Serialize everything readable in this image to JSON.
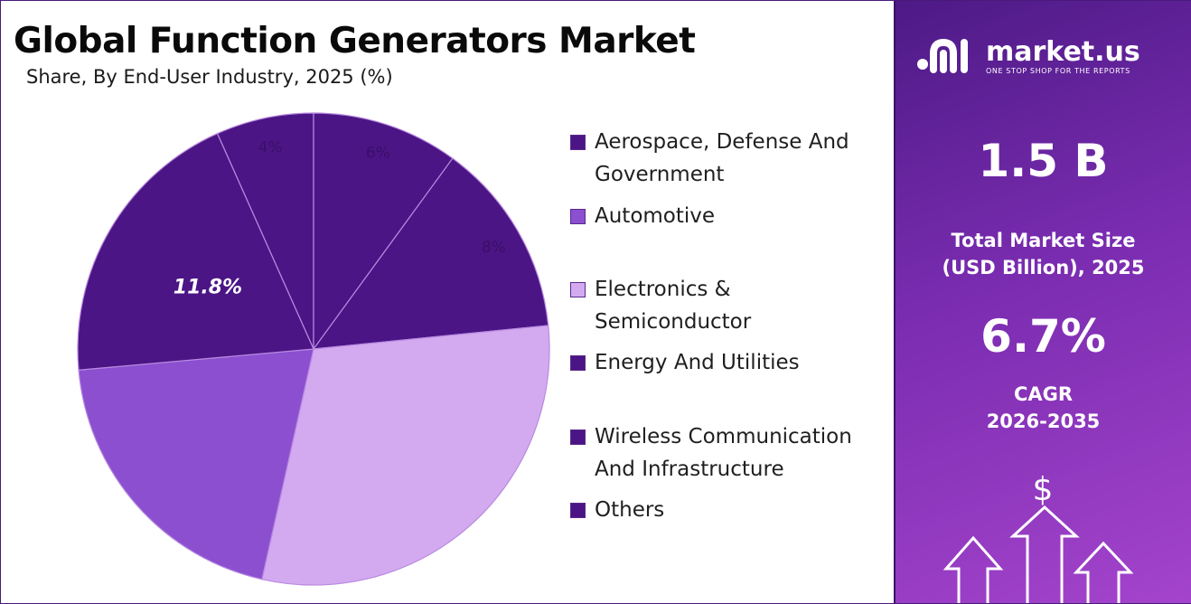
{
  "chart_data": {
    "type": "pie",
    "title": "Global Function Generators Market",
    "subtitle": "Share, By End-User Industry, 2025 (%)",
    "slices": [
      {
        "label": "Others",
        "value": 4,
        "display": "4%",
        "color": "#4b1585",
        "label_style": "faint"
      },
      {
        "label": "Wireless Communication And Infrastructure",
        "value": 6,
        "display": "6%",
        "color": "#4b1585",
        "label_style": "faint"
      },
      {
        "label": "Energy And Utilities",
        "value": 8,
        "display": "8%",
        "color": "#4b1585",
        "label_style": "faint"
      },
      {
        "label": "Electronics & Semiconductor",
        "value": 18,
        "display": "",
        "color": "#d3aaf0",
        "label_style": "none"
      },
      {
        "label": "Automotive",
        "value": 12,
        "display": "",
        "color": "#8b4fd0",
        "label_style": "none"
      },
      {
        "label": "Aerospace, Defense And Government",
        "value": 11.8,
        "display": "11.8%",
        "color": "#4b1585",
        "label_style": "bold"
      }
    ]
  },
  "legend": [
    {
      "label": "Aerospace, Defense And Government",
      "color": "#4b1585"
    },
    {
      "label": "Automotive",
      "color": "#8b4fd0"
    },
    {
      "label": "Electronics & Semiconductor",
      "color": "#d3aaf0"
    },
    {
      "label": "Energy And Utilities",
      "color": "#4b1585"
    },
    {
      "label": "Wireless Communication And Infrastructure",
      "color": "#4b1585"
    },
    {
      "label": "Others",
      "color": "#4b1585"
    }
  ],
  "brand": {
    "name": "market.us",
    "tagline": "ONE STOP SHOP FOR THE REPORTS"
  },
  "stats": {
    "market_size": "1.5 B",
    "market_size_label_1": "Total Market Size",
    "market_size_label_2": "(USD Billion), 2025",
    "cagr": "6.7%",
    "cagr_label_1": "CAGR",
    "cagr_label_2": "2026-2035"
  },
  "icons": {
    "currency": "$",
    "growth": "growth-arrows-icon"
  }
}
